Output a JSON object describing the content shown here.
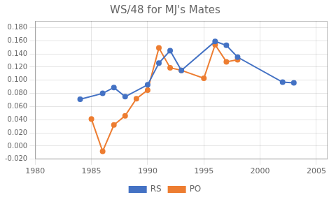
{
  "chart_data": {
    "type": "line",
    "title": "WS/48 for MJ's Mates",
    "series": [
      {
        "name": "RS",
        "color": "#4472C4",
        "marker": "circle",
        "x": [
          1984,
          1986,
          1987,
          1988,
          1990,
          1991,
          1992,
          1993,
          1996,
          1997,
          1998,
          2002,
          2003
        ],
        "values": [
          0.071,
          0.08,
          0.089,
          0.075,
          0.093,
          0.126,
          0.145,
          0.115,
          0.159,
          0.153,
          0.135,
          0.097,
          0.096
        ]
      },
      {
        "name": "PO",
        "color": "#ED7D31",
        "marker": "circle",
        "x": [
          1985,
          1986,
          1987,
          1988,
          1989,
          1990,
          1991,
          1992,
          1993,
          1995,
          1996,
          1997,
          1998
        ],
        "values": [
          0.041,
          -0.008,
          0.032,
          0.046,
          0.072,
          0.085,
          0.149,
          0.119,
          0.115,
          0.103,
          0.154,
          0.128,
          0.131
        ]
      }
    ],
    "xlim": [
      1980,
      2006
    ],
    "xticks": [
      1980,
      1985,
      1990,
      1995,
      2000,
      2005
    ],
    "ylim": [
      -0.02,
      0.19
    ],
    "yticks": [
      {
        "value": -0.02,
        "label": "-0.020"
      },
      {
        "value": 0.0,
        "label": "0.000"
      },
      {
        "value": 0.02,
        "label": "0.020"
      },
      {
        "value": 0.04,
        "label": "0.040"
      },
      {
        "value": 0.06,
        "label": "0.060"
      },
      {
        "value": 0.08,
        "label": "0.080"
      },
      {
        "value": 0.1,
        "label": "0.100"
      },
      {
        "value": 0.12,
        "label": "0.120"
      },
      {
        "value": 0.14,
        "label": "0.140"
      },
      {
        "value": 0.16,
        "label": "0.160"
      },
      {
        "value": 0.18,
        "label": "0.180"
      }
    ],
    "grid": true,
    "legend": "bottom"
  }
}
